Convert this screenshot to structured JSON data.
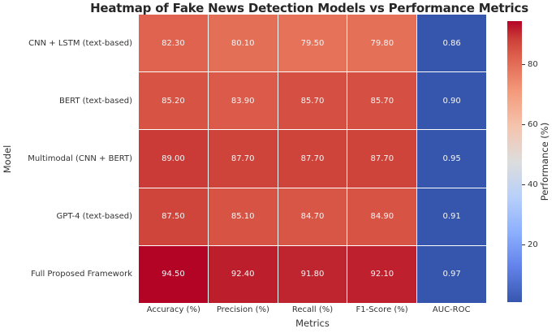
{
  "chart_data": {
    "type": "heatmap",
    "title": "Heatmap of Fake News Detection Models vs Performance Metrics",
    "xlabel": "Metrics",
    "ylabel": "Model",
    "rows": [
      "CNN + LSTM (text-based)",
      "BERT (text-based)",
      "Multimodal (CNN + BERT)",
      "GPT-4 (text-based)",
      "Full Proposed Framework"
    ],
    "columns": [
      "Accuracy (%)",
      "Precision (%)",
      "Recall (%)",
      "F1-Score (%)",
      "AUC-ROC"
    ],
    "values": [
      [
        82.3,
        80.1,
        79.5,
        79.8,
        0.86
      ],
      [
        85.2,
        83.9,
        85.7,
        85.7,
        0.9
      ],
      [
        89.0,
        87.7,
        87.7,
        87.7,
        0.95
      ],
      [
        87.5,
        85.1,
        84.7,
        84.9,
        0.91
      ],
      [
        94.5,
        92.4,
        91.8,
        92.1,
        0.97
      ]
    ],
    "cell_labels": [
      [
        "82.30",
        "80.10",
        "79.50",
        "79.80",
        "0.86"
      ],
      [
        "85.20",
        "83.90",
        "85.70",
        "85.70",
        "0.90"
      ],
      [
        "89.00",
        "87.70",
        "87.70",
        "87.70",
        "0.95"
      ],
      [
        "87.50",
        "85.10",
        "84.70",
        "84.90",
        "0.91"
      ],
      [
        "94.50",
        "92.40",
        "91.80",
        "92.10",
        "0.97"
      ]
    ],
    "cell_colors": [
      [
        "#DF634F",
        "#E46F57",
        "#E67259",
        "#E57058",
        "#3656AE"
      ],
      [
        "#D75344",
        "#DB5A49",
        "#D55042",
        "#D55042",
        "#3656AE"
      ],
      [
        "#CA3B37",
        "#CE443B",
        "#CE443B",
        "#CE443B",
        "#3656AE"
      ],
      [
        "#CF453C",
        "#D75344",
        "#D85646",
        "#D75445",
        "#3656AE"
      ],
      [
        "#B40426",
        "#BD1E2C",
        "#BF252E",
        "#BE212D",
        "#3656AE"
      ]
    ],
    "colormap": "coolwarm",
    "vmin": 0.86,
    "vmax": 94.5,
    "grid_on": false,
    "colorbar": {
      "label": "Performance (%)",
      "position": "right",
      "ticks": [
        {
          "label": "80",
          "pct": 15.5
        },
        {
          "label": "60",
          "pct": 36.8
        },
        {
          "label": "40",
          "pct": 58.2
        },
        {
          "label": "20",
          "pct": 79.6
        }
      ],
      "gradient_top_to_bottom": [
        {
          "color": "#B40426",
          "pct": 0
        },
        {
          "color": "#CB3E38",
          "pct": 6.25
        },
        {
          "color": "#DE604D",
          "pct": 12.5
        },
        {
          "color": "#F49A7B",
          "pct": 25
        },
        {
          "color": "#F5C4AD",
          "pct": 37.5
        },
        {
          "color": "#DDDDDD",
          "pct": 50
        },
        {
          "color": "#B8D0F9",
          "pct": 62.5
        },
        {
          "color": "#8DB0FE",
          "pct": 75
        },
        {
          "color": "#6282EA",
          "pct": 87.5
        },
        {
          "color": "#3656AE",
          "pct": 100
        }
      ]
    },
    "styles": {
      "cell_text_color": "#F5F5F5",
      "axis_text_color": "#333333",
      "title_color": "#262626",
      "grid_line_color": "#FFFFFF",
      "background": "#FFFFFF"
    }
  }
}
